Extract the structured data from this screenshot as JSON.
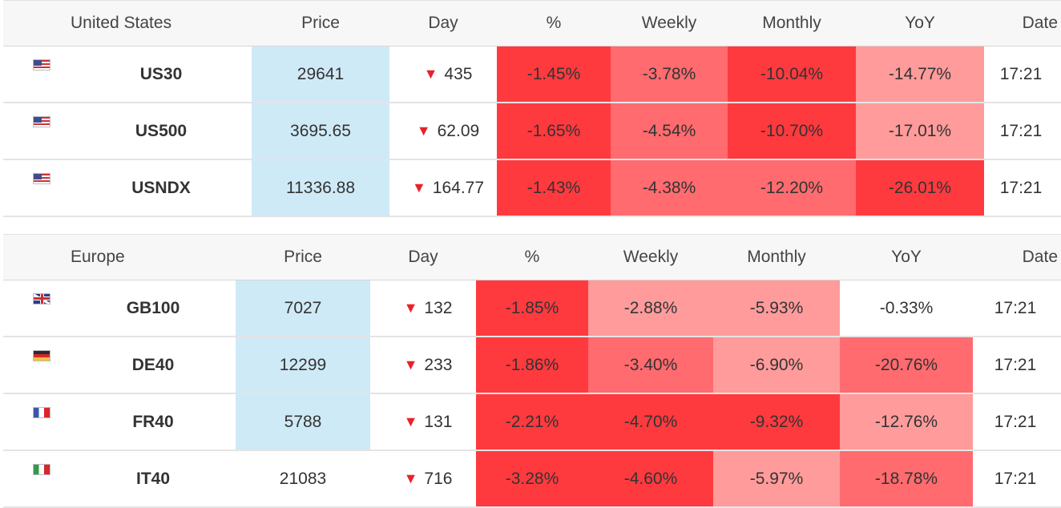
{
  "tables": [
    {
      "region": "United States",
      "headers": {
        "price": "Price",
        "day": "Day",
        "pct": "%",
        "weekly": "Weekly",
        "monthly": "Monthly",
        "yoy": "YoY",
        "date": "Date"
      },
      "rows": [
        {
          "flag": "us-flag-icon",
          "symbol": "US30",
          "price": "29641",
          "day": "435",
          "day_dir": "down",
          "pct": "-1.45%",
          "weekly": "-3.78%",
          "monthly": "-10.04%",
          "yoy": "-14.77%",
          "date": "17:21"
        },
        {
          "flag": "us-flag-icon",
          "symbol": "US500",
          "price": "3695.65",
          "day": "62.09",
          "day_dir": "down",
          "pct": "-1.65%",
          "weekly": "-4.54%",
          "monthly": "-10.70%",
          "yoy": "-17.01%",
          "date": "17:21"
        },
        {
          "flag": "us-flag-icon",
          "symbol": "USNDX",
          "price": "11336.88",
          "day": "164.77",
          "day_dir": "down",
          "pct": "-1.43%",
          "weekly": "-4.38%",
          "monthly": "-12.20%",
          "yoy": "-26.01%",
          "date": "17:21"
        }
      ]
    },
    {
      "region": "Europe",
      "headers": {
        "price": "Price",
        "day": "Day",
        "pct": "%",
        "weekly": "Weekly",
        "monthly": "Monthly",
        "yoy": "YoY",
        "date": "Date"
      },
      "rows": [
        {
          "flag": "gb-flag-icon",
          "symbol": "GB100",
          "price": "7027",
          "day": "132",
          "day_dir": "down",
          "pct": "-1.85%",
          "weekly": "-2.88%",
          "monthly": "-5.93%",
          "yoy": "-0.33%",
          "date": "17:21"
        },
        {
          "flag": "de-flag-icon",
          "symbol": "DE40",
          "price": "12299",
          "day": "233",
          "day_dir": "down",
          "pct": "-1.86%",
          "weekly": "-3.40%",
          "monthly": "-6.90%",
          "yoy": "-20.76%",
          "date": "17:21"
        },
        {
          "flag": "fr-flag-icon",
          "symbol": "FR40",
          "price": "5788",
          "day": "131",
          "day_dir": "down",
          "pct": "-2.21%",
          "weekly": "-4.70%",
          "monthly": "-9.32%",
          "yoy": "-12.76%",
          "date": "17:21"
        },
        {
          "flag": "it-flag-icon",
          "symbol": "IT40",
          "price": "21083",
          "day": "716",
          "day_dir": "down",
          "pct": "-3.28%",
          "weekly": "-4.60%",
          "monthly": "-5.97%",
          "yoy": "-18.78%",
          "date": "17:21"
        }
      ]
    }
  ],
  "arrow_glyph": "▼",
  "colors": {
    "price_highlight": "#cfeaf7",
    "heat_strong": "#ff3a3f",
    "heat_mid": "#ff6b6e",
    "heat_light": "#ff9b9b",
    "down_arrow": "#e8212b"
  }
}
